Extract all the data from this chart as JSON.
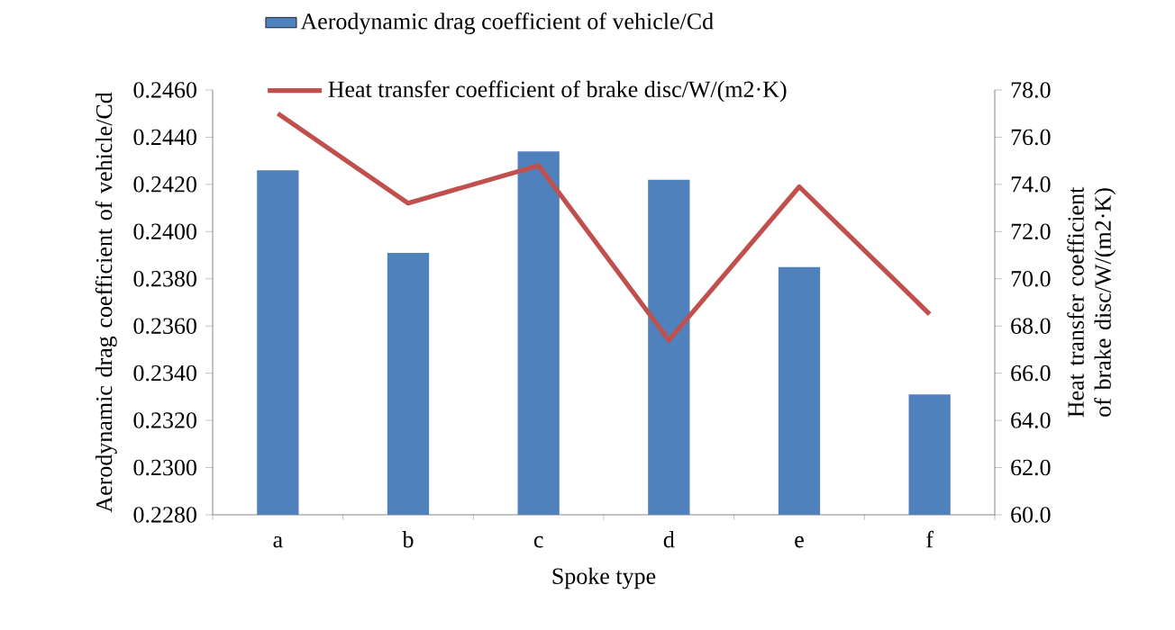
{
  "chart_data": {
    "type": "bar",
    "xlabel": "Spoke type",
    "ylabel": "Aerodynamic drag coefficient of vehicle/Cd",
    "y2label": "Heat transfer coefficient of brake disc/W/(m2·K)",
    "categories": [
      "a",
      "b",
      "c",
      "d",
      "e",
      "f"
    ],
    "series": [
      {
        "name": "Aerodynamic drag coefficient of vehicle/Cd",
        "color": "#4f81bd",
        "values": [
          0.2426,
          0.2391,
          0.2434,
          0.2422,
          0.2385,
          0.2331
        ]
      },
      {
        "name": "Heat transfer coefficient of brake disc/W/(m2·K)",
        "type": "line",
        "axis": "y2",
        "color": "#c0504d",
        "values": [
          77.0,
          73.2,
          74.8,
          67.4,
          73.9,
          68.5
        ]
      }
    ],
    "ylim": [
      0.228,
      0.246
    ],
    "yticks": [
      {
        "value": 0.228,
        "label": "0.2280"
      },
      {
        "value": 0.23,
        "label": "0.2300"
      },
      {
        "value": 0.232,
        "label": "0.2320"
      },
      {
        "value": 0.234,
        "label": "0.2340"
      },
      {
        "value": 0.236,
        "label": "0.2360"
      },
      {
        "value": 0.238,
        "label": "0.2380"
      },
      {
        "value": 0.24,
        "label": "0.2400"
      },
      {
        "value": 0.242,
        "label": "0.2420"
      },
      {
        "value": 0.244,
        "label": "0.2440"
      },
      {
        "value": 0.246,
        "label": "0.2460"
      }
    ],
    "y2lim": [
      60,
      78
    ],
    "y2ticks": [
      {
        "value": 60,
        "label": "60.0"
      },
      {
        "value": 62,
        "label": "62.0"
      },
      {
        "value": 64,
        "label": "64.0"
      },
      {
        "value": 66,
        "label": "66.0"
      },
      {
        "value": 68,
        "label": "68.0"
      },
      {
        "value": 70,
        "label": "70.0"
      },
      {
        "value": 72,
        "label": "72.0"
      },
      {
        "value": 74,
        "label": "74.0"
      },
      {
        "value": 76,
        "label": "76.0"
      },
      {
        "value": 78,
        "label": "78.0"
      }
    ],
    "legend": "top",
    "grid": false,
    "marker": "none",
    "line_style": "solid"
  }
}
